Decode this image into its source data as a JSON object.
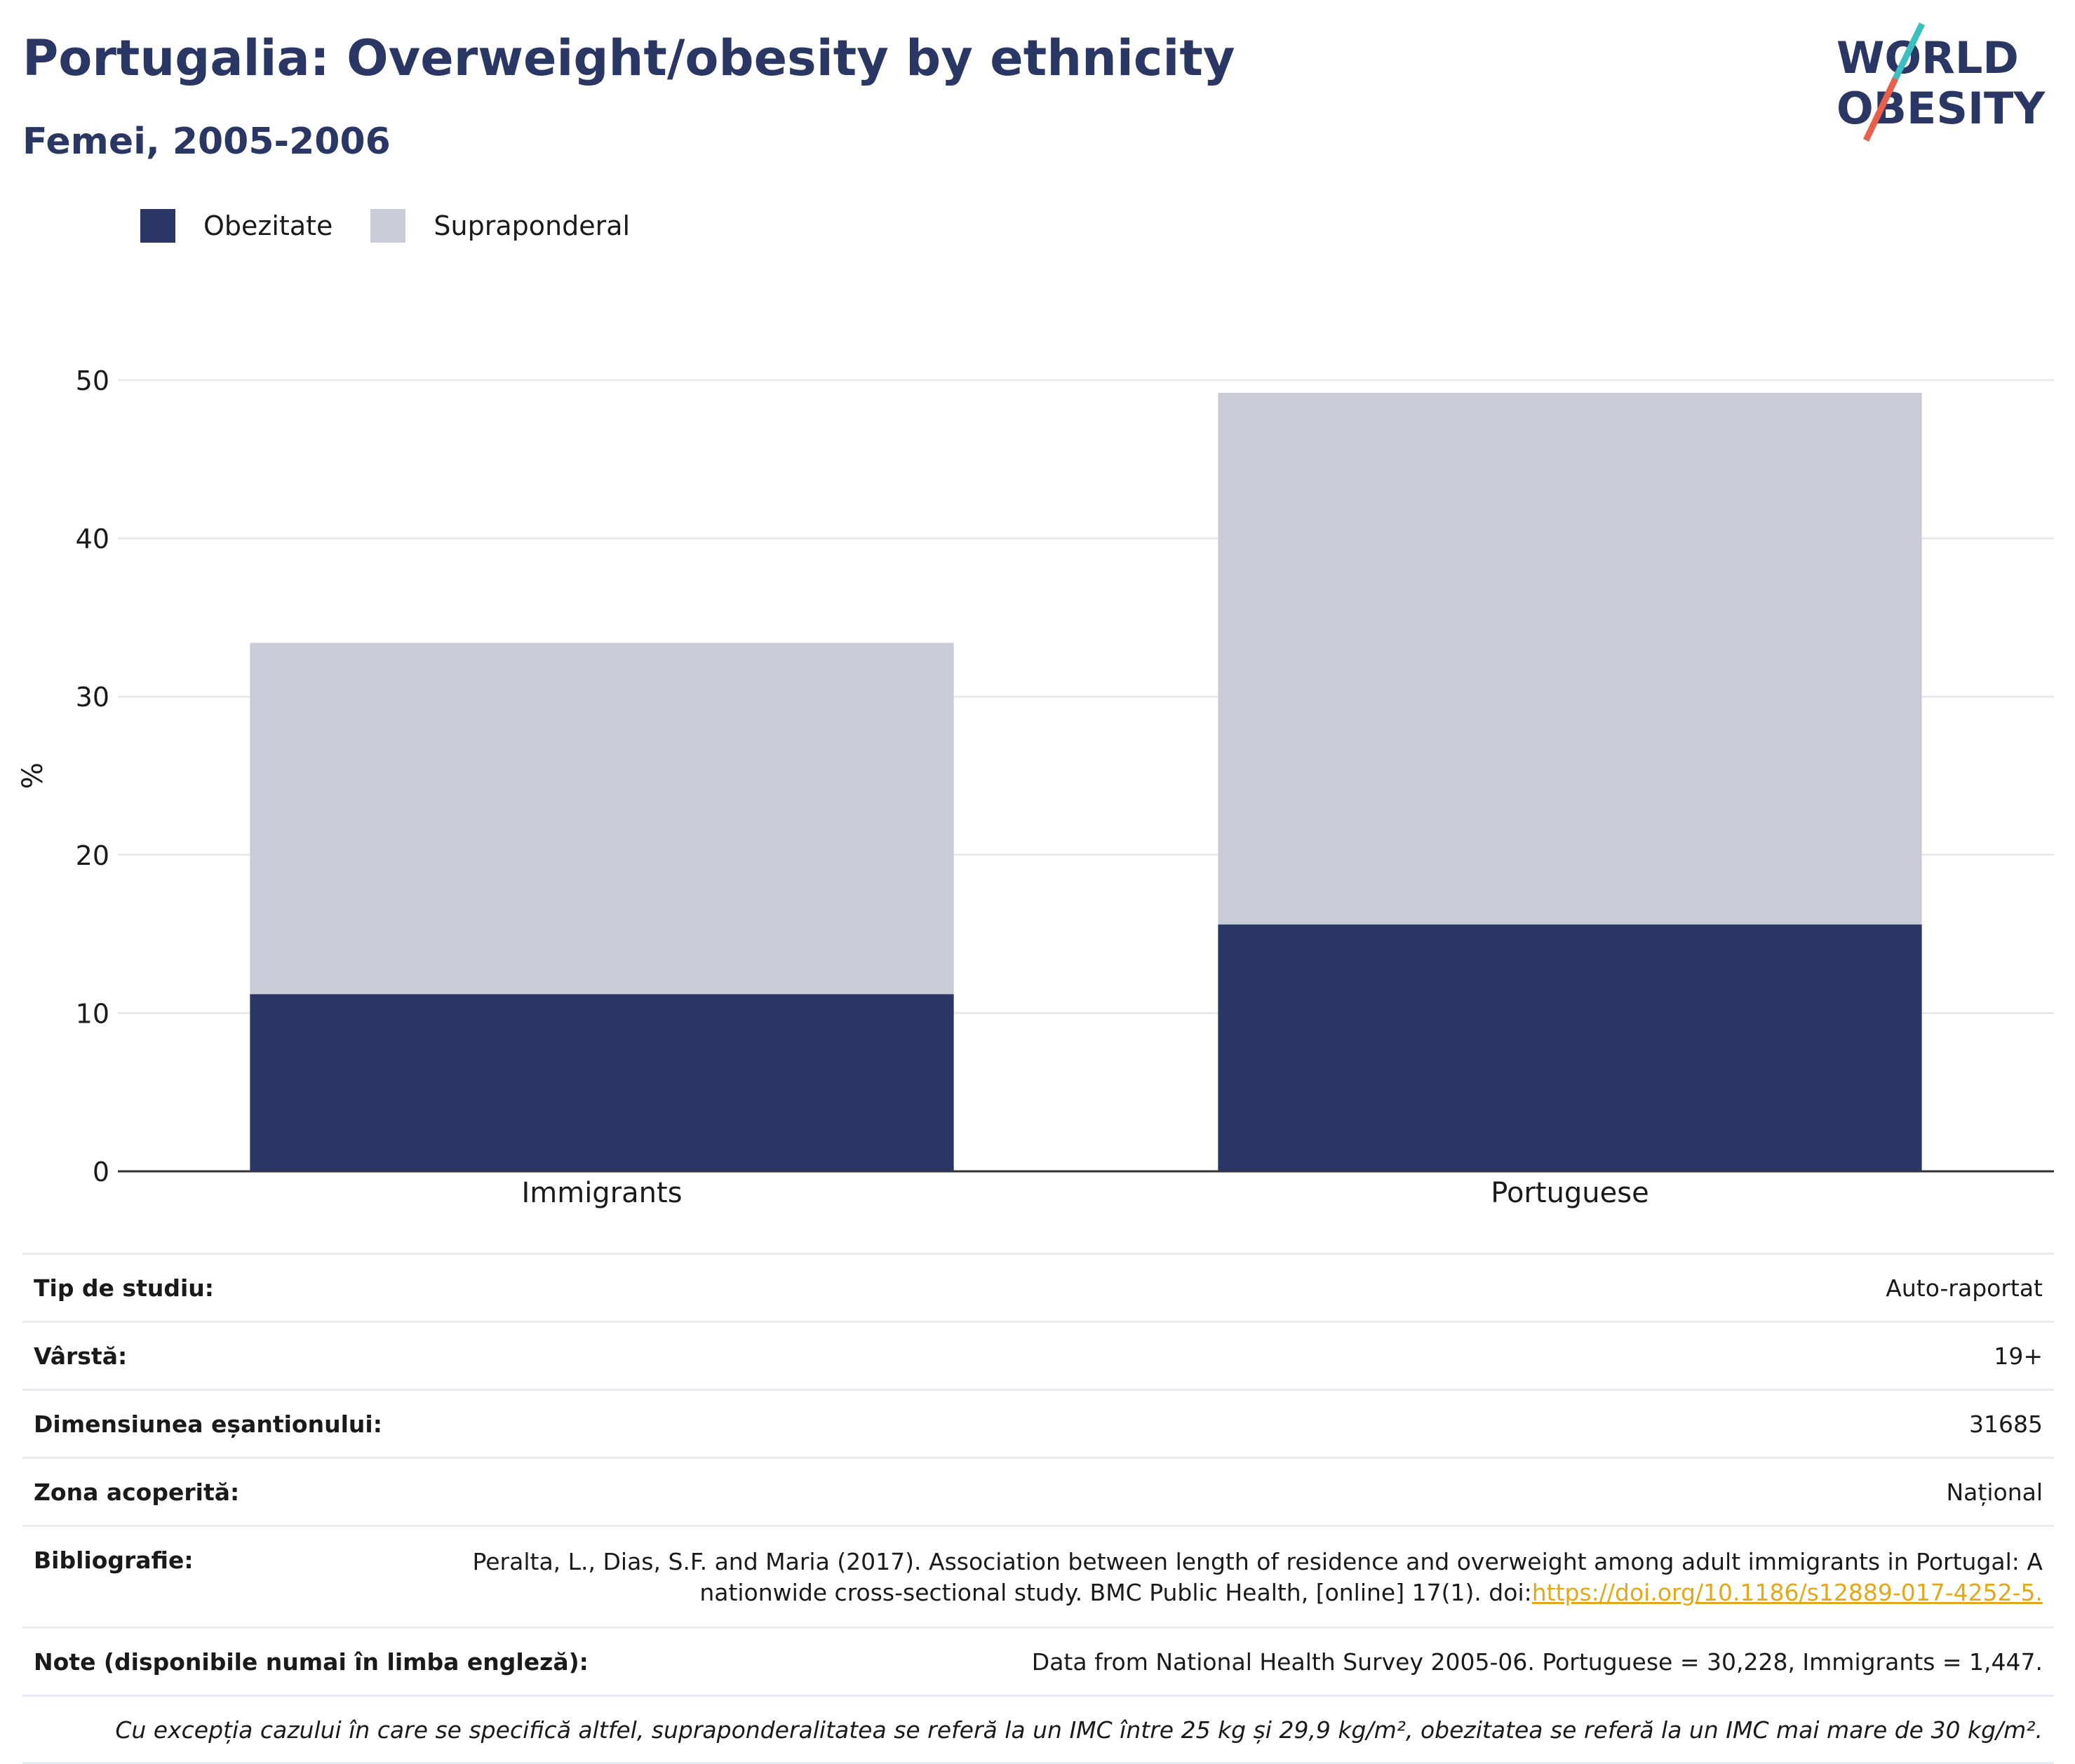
{
  "header": {
    "title": "Portugalia: Overweight/obesity by ethnicity",
    "subtitle": "Femei, 2005-2006"
  },
  "logo": {
    "line1": "WORLD",
    "line2": "OBESITY",
    "colors": {
      "text": "#2a3663",
      "slash_top": "#3bbfbf",
      "slash_bottom": "#e8604c"
    }
  },
  "legend": [
    {
      "label": "Obezitate",
      "color": "#2a3663"
    },
    {
      "label": "Supraponderal",
      "color": "#c9cbd7"
    }
  ],
  "chart_data": {
    "type": "bar",
    "stacked": true,
    "categories": [
      "Immigrants",
      "Portuguese"
    ],
    "series": [
      {
        "name": "Obezitate",
        "values": [
          11.2,
          15.6
        ],
        "color": "#2a3663"
      },
      {
        "name": "Supraponderal",
        "values": [
          22.2,
          33.6
        ],
        "color": "#c9cbd7"
      }
    ],
    "ylabel": "%",
    "ylim": [
      0,
      50
    ],
    "yticks": [
      0,
      10,
      20,
      30,
      40,
      50
    ],
    "grid": true
  },
  "meta": {
    "study_type": {
      "label": "Tip de studiu:",
      "value": "Auto-raportat"
    },
    "age": {
      "label": "Vârstă:",
      "value": "19+"
    },
    "sample_size": {
      "label": "Dimensiunea eșantionului:",
      "value": "31685"
    },
    "area": {
      "label": "Zona acoperită:",
      "value": "Național"
    },
    "bibliography": {
      "label": "Bibliografie:",
      "text": "Peralta, L., Dias, S.F. and Maria (2017). Association between length of residence and overweight among adult immigrants in Portugal: A nationwide cross-sectional study. BMC Public Health, [online] 17(1). doi:",
      "link": "https://doi.org/10.1186/s12889-017-4252-5."
    },
    "notes": {
      "label": "Note (disponibile numai în limba engleză):",
      "value": "Data from National Health Survey 2005-06. Portuguese = 30,228, Immigrants = 1,447."
    },
    "footnote": "Cu excepția cazului în care se specifică altfel, supraponderalitatea se referă la un IMC între 25 kg și 29,9 kg/m², obezitatea se referă la un IMC mai mare de 30 kg/m²."
  }
}
